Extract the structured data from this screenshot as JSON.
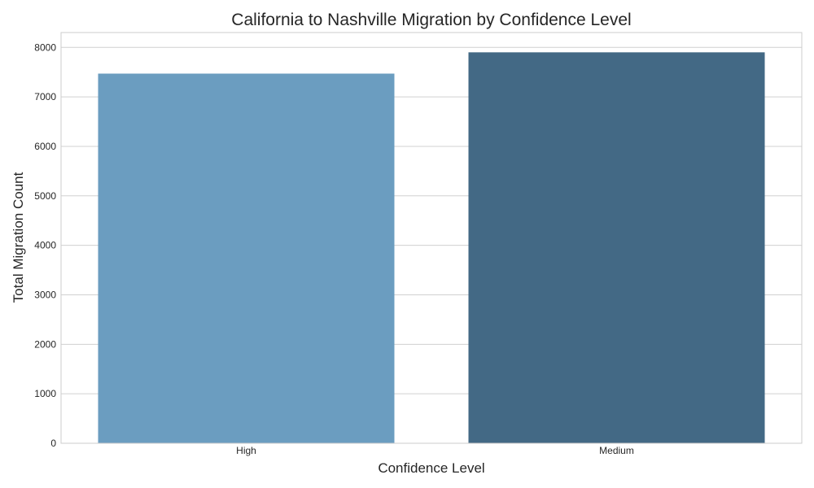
{
  "chart_data": {
    "type": "bar",
    "title": "California to Nashville Migration by Confidence Level",
    "xlabel": "Confidence Level",
    "ylabel": "Total Migration Count",
    "categories": [
      "High",
      "Medium"
    ],
    "values": [
      7470,
      7900
    ],
    "ylim": [
      0,
      8300
    ],
    "yticks": [
      0,
      1000,
      2000,
      3000,
      4000,
      5000,
      6000,
      7000,
      8000
    ],
    "grid": true,
    "legend": "none",
    "colors": [
      "#6b9dc0",
      "#436985"
    ]
  }
}
